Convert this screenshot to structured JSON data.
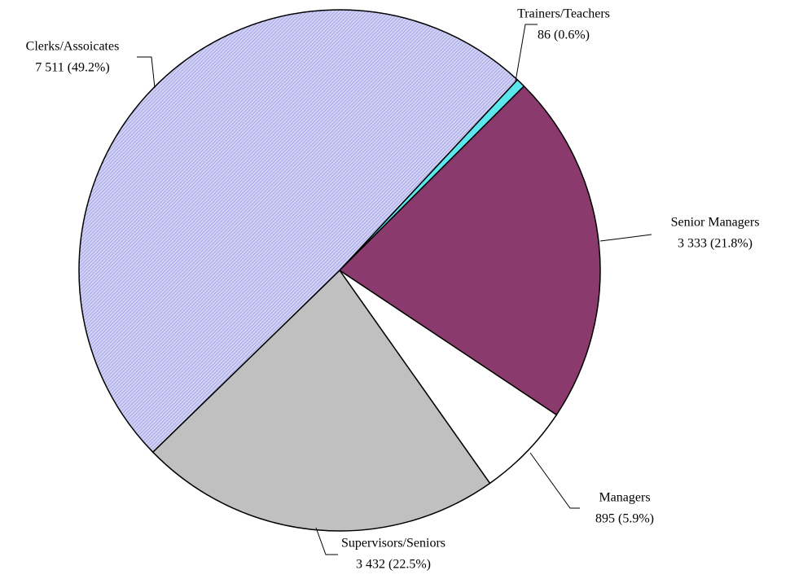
{
  "chart_data": {
    "type": "pie",
    "categories": [
      "Trainers/Teachers",
      "Senior Managers",
      "Managers",
      "Supervisors/Seniors",
      "Clerks/Assoicates"
    ],
    "values": [
      86,
      3333,
      895,
      3432,
      7511
    ],
    "value_labels": [
      "86 (0.6%)",
      "3 333 (21.8%)",
      "895 (5.9%)",
      "3 432 (22.5%)",
      "7 511 (49.2%)"
    ],
    "colors": [
      "#5ce6ee",
      "#8b3a6e",
      "#ffffff",
      "#c0c0c0",
      "#9a9ae6"
    ]
  }
}
